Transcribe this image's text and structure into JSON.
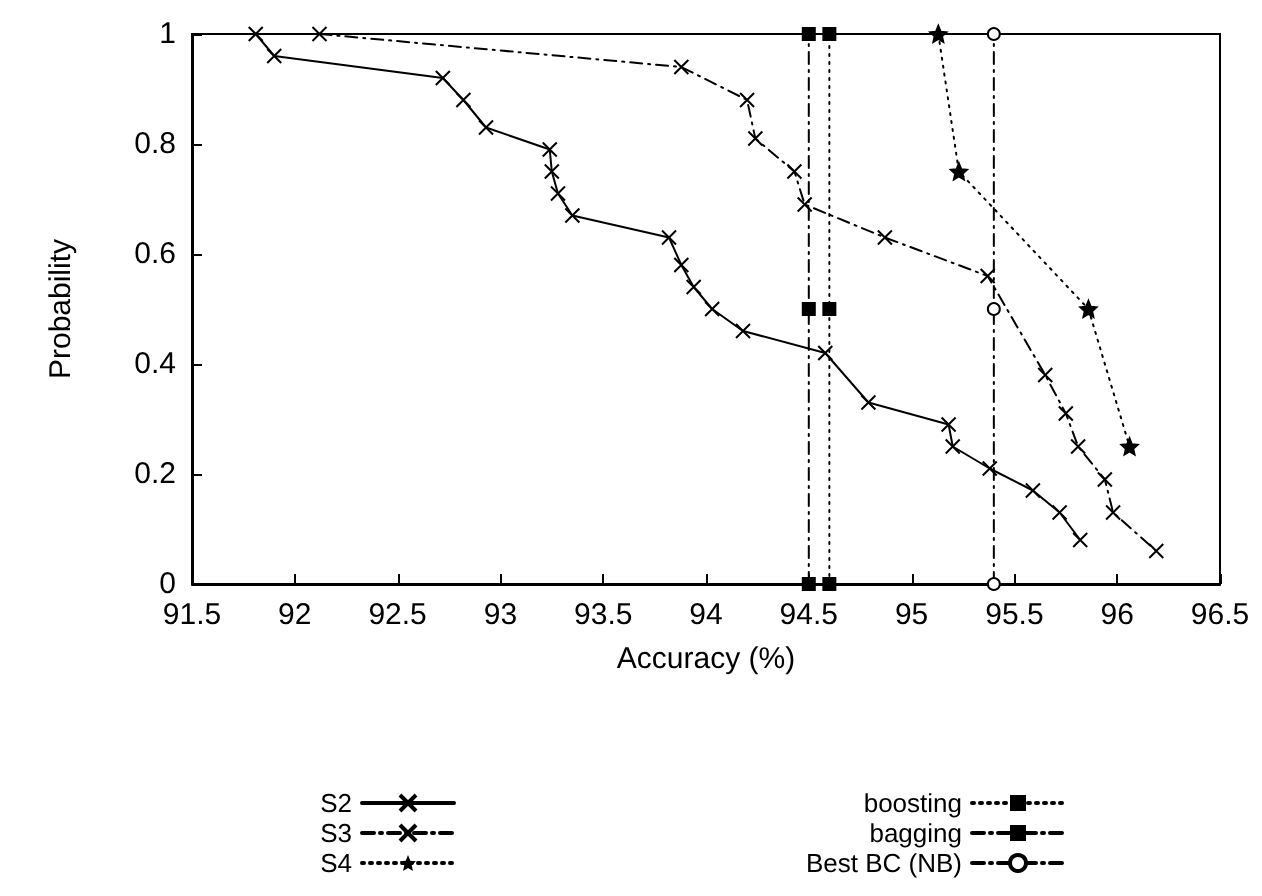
{
  "chart_data": {
    "type": "line",
    "xlabel": "Accuracy (%)",
    "ylabel": "Probability",
    "xlim": [
      91.5,
      96.5
    ],
    "xticks": [
      91.5,
      92,
      92.5,
      93,
      93.5,
      94,
      94.5,
      95,
      95.5,
      96,
      96.5
    ],
    "ylim": [
      0,
      1
    ],
    "yticks": [
      0,
      0.2,
      0.4,
      0.6,
      0.8,
      1
    ],
    "grid": false,
    "legend": "bottom",
    "series": [
      {
        "name": "S2",
        "color": "#000000",
        "marker": "cross",
        "line_style": "solid",
        "x": [
          91.81,
          91.9,
          92.72,
          92.82,
          92.93,
          93.24,
          93.25,
          93.28,
          93.35,
          93.82,
          93.88,
          93.94,
          94.03,
          94.18,
          94.58,
          94.79,
          95.18,
          95.2,
          95.38,
          95.59,
          95.72,
          95.82
        ],
        "values": [
          1,
          0.96,
          0.92,
          0.88,
          0.83,
          0.79,
          0.75,
          0.71,
          0.67,
          0.63,
          0.58,
          0.54,
          0.5,
          0.46,
          0.42,
          0.33,
          0.29,
          0.25,
          0.21,
          0.17,
          0.13,
          0.08
        ]
      },
      {
        "name": "S3",
        "color": "#000000",
        "marker": "cross",
        "line_style": "dashed",
        "x": [
          92.12,
          93.88,
          94.2,
          94.24,
          94.43,
          94.48,
          94.87,
          95.37,
          95.65,
          95.75,
          95.81,
          95.94,
          95.98,
          96.19
        ],
        "values": [
          1,
          0.94,
          0.88,
          0.81,
          0.75,
          0.69,
          0.63,
          0.56,
          0.38,
          0.31,
          0.25,
          0.19,
          0.13,
          0.06
        ]
      },
      {
        "name": "S4",
        "color": "#000000",
        "marker": "star",
        "line_style": "dotted",
        "x": [
          95.13,
          95.23,
          95.86,
          96.06
        ],
        "values": [
          1,
          0.75,
          0.5,
          0.25
        ]
      },
      {
        "name": "boosting",
        "color": "#000000",
        "marker": "square",
        "line_style": "dotted",
        "x": [
          94.6,
          94.6,
          94.6
        ],
        "values": [
          0,
          0.5,
          1
        ]
      },
      {
        "name": "bagging",
        "color": "#000000",
        "marker": "square",
        "line_style": "dashed",
        "x": [
          94.5,
          94.5,
          94.5
        ],
        "values": [
          0,
          0.5,
          1
        ]
      },
      {
        "name": "Best BC (NB)",
        "color": "#000000",
        "marker": "circle",
        "line_style": "dashed",
        "x": [
          95.4,
          95.4,
          95.4
        ],
        "values": [
          0,
          0.5,
          1
        ]
      }
    ]
  }
}
